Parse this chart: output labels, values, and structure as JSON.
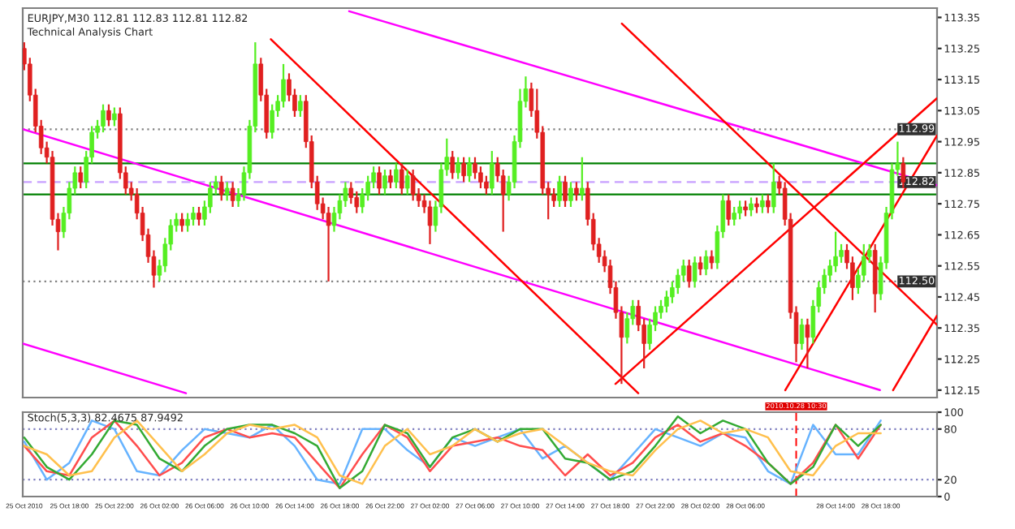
{
  "chart_data": [
    {
      "type": "candlestick",
      "title": "EURJPY,M30 112.81 112.83 112.81 112.82",
      "subtitle": "Technical Analysis Chart",
      "x": [
        "2010-10-25T14:00",
        "2010-10-25T14:30",
        "2010-10-25T15:00",
        "2010-10-25T15:30",
        "2010-10-25T16:00",
        "2010-10-25T16:30",
        "2010-10-25T17:00",
        "2010-10-25T17:30",
        "2010-10-25T18:00",
        "2010-10-25T18:30",
        "2010-10-25T19:00",
        "2010-10-25T19:30",
        "2010-10-25T20:00",
        "2010-10-25T20:30",
        "2010-10-25T21:00",
        "2010-10-25T21:30",
        "2010-10-25T22:00",
        "2010-10-25T22:30",
        "2010-10-25T23:00",
        "2010-10-25T23:30",
        "2010-10-26T00:00",
        "2010-10-26T00:30",
        "2010-10-26T01:00",
        "2010-10-26T01:30",
        "2010-10-26T02:00",
        "2010-10-26T02:30",
        "2010-10-26T03:00",
        "2010-10-26T03:30",
        "2010-10-26T04:00",
        "2010-10-26T04:30",
        "2010-10-26T05:00",
        "2010-10-26T05:30",
        "2010-10-26T06:00",
        "2010-10-26T06:30",
        "2010-10-26T07:00",
        "2010-10-26T07:30",
        "2010-10-26T08:00",
        "2010-10-26T08:30",
        "2010-10-26T09:00",
        "2010-10-26T09:30",
        "2010-10-26T10:00",
        "2010-10-26T10:30",
        "2010-10-26T11:00",
        "2010-10-26T11:30",
        "2010-10-26T12:00",
        "2010-10-26T12:30",
        "2010-10-26T13:00",
        "2010-10-26T13:30",
        "2010-10-26T14:00",
        "2010-10-26T14:30",
        "2010-10-26T15:00",
        "2010-10-26T15:30",
        "2010-10-26T16:00",
        "2010-10-26T16:30",
        "2010-10-26T17:00",
        "2010-10-26T17:30",
        "2010-10-26T18:00",
        "2010-10-26T18:30",
        "2010-10-26T19:00",
        "2010-10-26T19:30",
        "2010-10-26T20:00",
        "2010-10-26T20:30",
        "2010-10-26T21:00",
        "2010-10-26T21:30",
        "2010-10-26T22:00",
        "2010-10-26T22:30",
        "2010-10-26T23:00",
        "2010-10-26T23:30",
        "2010-10-27T00:00",
        "2010-10-27T00:30",
        "2010-10-27T01:00",
        "2010-10-27T01:30",
        "2010-10-27T02:00",
        "2010-10-27T02:30",
        "2010-10-27T03:00",
        "2010-10-27T03:30",
        "2010-10-27T04:00",
        "2010-10-27T04:30",
        "2010-10-27T05:00",
        "2010-10-27T05:30",
        "2010-10-27T06:00",
        "2010-10-27T06:30",
        "2010-10-27T07:00",
        "2010-10-27T07:30",
        "2010-10-27T08:00",
        "2010-10-27T08:30",
        "2010-10-27T09:00",
        "2010-10-27T09:30",
        "2010-10-27T10:00",
        "2010-10-27T10:30",
        "2010-10-27T11:00",
        "2010-10-27T11:30",
        "2010-10-27T12:00",
        "2010-10-27T12:30",
        "2010-10-27T13:00",
        "2010-10-27T13:30",
        "2010-10-27T14:00",
        "2010-10-27T14:30",
        "2010-10-27T15:00",
        "2010-10-27T15:30",
        "2010-10-27T16:00",
        "2010-10-27T16:30",
        "2010-10-27T17:00",
        "2010-10-27T17:30",
        "2010-10-27T18:00",
        "2010-10-27T18:30",
        "2010-10-27T19:00",
        "2010-10-27T19:30",
        "2010-10-27T20:00",
        "2010-10-27T20:30",
        "2010-10-27T21:00",
        "2010-10-27T21:30",
        "2010-10-27T22:00",
        "2010-10-27T22:30",
        "2010-10-27T23:00",
        "2010-10-27T23:30",
        "2010-10-28T00:00",
        "2010-10-28T00:30",
        "2010-10-28T01:00",
        "2010-10-28T01:30",
        "2010-10-28T02:00",
        "2010-10-28T02:30",
        "2010-10-28T03:00",
        "2010-10-28T03:30",
        "2010-10-28T04:00",
        "2010-10-28T04:30",
        "2010-10-28T05:00",
        "2010-10-28T05:30",
        "2010-10-28T06:00",
        "2010-10-28T06:30",
        "2010-10-28T07:00",
        "2010-10-28T07:30",
        "2010-10-28T08:00",
        "2010-10-28T08:30",
        "2010-10-28T09:00",
        "2010-10-28T09:30",
        "2010-10-28T10:00",
        "2010-10-28T10:30",
        "2010-10-28T11:00",
        "2010-10-28T11:30",
        "2010-10-28T12:00",
        "2010-10-28T12:30",
        "2010-10-28T13:00",
        "2010-10-28T13:30",
        "2010-10-28T14:00",
        "2010-10-28T14:30",
        "2010-10-28T15:00",
        "2010-10-28T15:30",
        "2010-10-28T16:00",
        "2010-10-28T16:30",
        "2010-10-28T17:00",
        "2010-10-28T17:30",
        "2010-10-28T18:00",
        "2010-10-28T18:30",
        "2010-10-28T19:00",
        "2010-10-28T19:30",
        "2010-10-28T20:00"
      ],
      "ohlc": [
        [
          113.25,
          113.27,
          113.18,
          113.2
        ],
        [
          113.2,
          113.22,
          113.08,
          113.1
        ],
        [
          113.1,
          113.12,
          112.98,
          113.0
        ],
        [
          113.0,
          113.02,
          112.91,
          112.93
        ],
        [
          112.93,
          112.95,
          112.88,
          112.9
        ],
        [
          112.9,
          112.92,
          112.68,
          112.7
        ],
        [
          112.7,
          112.72,
          112.6,
          112.66
        ],
        [
          112.66,
          112.74,
          112.64,
          112.72
        ],
        [
          112.72,
          112.82,
          112.7,
          112.8
        ],
        [
          112.8,
          112.87,
          112.78,
          112.85
        ],
        [
          112.85,
          112.87,
          112.8,
          112.82
        ],
        [
          112.82,
          112.92,
          112.8,
          112.9
        ],
        [
          112.9,
          113.0,
          112.88,
          112.98
        ],
        [
          112.98,
          113.02,
          112.96,
          113.0
        ],
        [
          113.0,
          113.07,
          112.98,
          113.05
        ],
        [
          113.05,
          113.07,
          113.0,
          113.02
        ],
        [
          113.02,
          113.06,
          113.0,
          113.04
        ],
        [
          113.04,
          113.06,
          112.83,
          112.85
        ],
        [
          112.85,
          112.87,
          112.78,
          112.8
        ],
        [
          112.8,
          112.82,
          112.76,
          112.78
        ],
        [
          112.78,
          112.8,
          112.7,
          112.72
        ],
        [
          112.72,
          112.74,
          112.63,
          112.65
        ],
        [
          112.65,
          112.67,
          112.56,
          112.58
        ],
        [
          112.58,
          112.6,
          112.48,
          112.52
        ],
        [
          112.52,
          112.57,
          112.5,
          112.55
        ],
        [
          112.55,
          112.64,
          112.53,
          112.62
        ],
        [
          112.62,
          112.7,
          112.6,
          112.68
        ],
        [
          112.68,
          112.72,
          112.66,
          112.7
        ],
        [
          112.7,
          112.72,
          112.66,
          112.68
        ],
        [
          112.68,
          112.72,
          112.66,
          112.7
        ],
        [
          112.7,
          112.74,
          112.68,
          112.72
        ],
        [
          112.72,
          112.74,
          112.68,
          112.7
        ],
        [
          112.7,
          112.76,
          112.68,
          112.74
        ],
        [
          112.74,
          112.82,
          112.72,
          112.8
        ],
        [
          112.8,
          112.84,
          112.78,
          112.82
        ],
        [
          112.82,
          112.84,
          112.76,
          112.78
        ],
        [
          112.78,
          112.82,
          112.76,
          112.8
        ],
        [
          112.8,
          112.82,
          112.74,
          112.76
        ],
        [
          112.76,
          112.8,
          112.74,
          112.78
        ],
        [
          112.78,
          112.87,
          112.76,
          112.85
        ],
        [
          112.85,
          113.02,
          112.83,
          113.0
        ],
        [
          113.0,
          113.27,
          112.98,
          113.2
        ],
        [
          113.2,
          113.22,
          113.08,
          113.1
        ],
        [
          113.1,
          113.12,
          112.96,
          112.98
        ],
        [
          112.98,
          113.07,
          112.96,
          113.05
        ],
        [
          113.05,
          113.1,
          113.03,
          113.08
        ],
        [
          113.08,
          113.2,
          113.06,
          113.15
        ],
        [
          113.15,
          113.17,
          113.08,
          113.1
        ],
        [
          113.1,
          113.12,
          113.03,
          113.05
        ],
        [
          113.05,
          113.1,
          113.03,
          113.08
        ],
        [
          113.08,
          113.1,
          112.93,
          112.95
        ],
        [
          112.95,
          112.97,
          112.8,
          112.82
        ],
        [
          112.82,
          112.84,
          112.73,
          112.75
        ],
        [
          112.75,
          112.77,
          112.7,
          112.72
        ],
        [
          112.72,
          112.74,
          112.5,
          112.68
        ],
        [
          112.68,
          112.74,
          112.66,
          112.72
        ],
        [
          112.72,
          112.78,
          112.7,
          112.76
        ],
        [
          112.76,
          112.82,
          112.74,
          112.8
        ],
        [
          112.8,
          112.82,
          112.75,
          112.77
        ],
        [
          112.77,
          112.79,
          112.72,
          112.74
        ],
        [
          112.74,
          112.8,
          112.72,
          112.78
        ],
        [
          112.78,
          112.84,
          112.76,
          112.82
        ],
        [
          112.82,
          112.87,
          112.8,
          112.85
        ],
        [
          112.85,
          112.87,
          112.78,
          112.8
        ],
        [
          112.8,
          112.86,
          112.78,
          112.84
        ],
        [
          112.84,
          112.86,
          112.8,
          112.82
        ],
        [
          112.82,
          112.88,
          112.8,
          112.86
        ],
        [
          112.86,
          112.88,
          112.78,
          112.8
        ],
        [
          112.8,
          112.86,
          112.78,
          112.84
        ],
        [
          112.84,
          112.86,
          112.76,
          112.78
        ],
        [
          112.78,
          112.8,
          112.74,
          112.76
        ],
        [
          112.76,
          112.78,
          112.72,
          112.74
        ],
        [
          112.74,
          112.76,
          112.62,
          112.68
        ],
        [
          112.68,
          112.76,
          112.66,
          112.74
        ],
        [
          112.74,
          112.88,
          112.72,
          112.86
        ],
        [
          112.86,
          112.96,
          112.84,
          112.9
        ],
        [
          112.9,
          112.92,
          112.83,
          112.85
        ],
        [
          112.85,
          112.9,
          112.83,
          112.88
        ],
        [
          112.88,
          112.9,
          112.82,
          112.84
        ],
        [
          112.84,
          112.9,
          112.82,
          112.88
        ],
        [
          112.88,
          112.9,
          112.83,
          112.85
        ],
        [
          112.85,
          112.87,
          112.8,
          112.82
        ],
        [
          112.82,
          112.84,
          112.78,
          112.8
        ],
        [
          112.8,
          112.92,
          112.78,
          112.88
        ],
        [
          112.88,
          112.9,
          112.82,
          112.84
        ],
        [
          112.84,
          112.86,
          112.66,
          112.78
        ],
        [
          112.78,
          112.84,
          112.76,
          112.82
        ],
        [
          112.82,
          112.97,
          112.8,
          112.95
        ],
        [
          112.95,
          113.12,
          112.93,
          113.08
        ],
        [
          113.08,
          113.16,
          113.06,
          113.12
        ],
        [
          113.12,
          113.14,
          113.03,
          113.05
        ],
        [
          113.05,
          113.12,
          112.96,
          112.98
        ],
        [
          112.98,
          113.0,
          112.78,
          112.8
        ],
        [
          112.8,
          112.82,
          112.7,
          112.78
        ],
        [
          112.78,
          112.8,
          112.74,
          112.76
        ],
        [
          112.76,
          112.84,
          112.74,
          112.82
        ],
        [
          112.82,
          112.84,
          112.74,
          112.76
        ],
        [
          112.76,
          112.82,
          112.74,
          112.8
        ],
        [
          112.8,
          112.82,
          112.76,
          112.78
        ],
        [
          112.78,
          112.9,
          112.76,
          112.8
        ],
        [
          112.8,
          112.82,
          112.68,
          112.7
        ],
        [
          112.7,
          112.72,
          112.6,
          112.62
        ],
        [
          112.62,
          112.64,
          112.56,
          112.58
        ],
        [
          112.58,
          112.6,
          112.53,
          112.55
        ],
        [
          112.55,
          112.57,
          112.46,
          112.48
        ],
        [
          112.48,
          112.5,
          112.38,
          112.4
        ],
        [
          112.4,
          112.42,
          112.17,
          112.32
        ],
        [
          112.32,
          112.4,
          112.3,
          112.38
        ],
        [
          112.38,
          112.44,
          112.36,
          112.42
        ],
        [
          112.42,
          112.44,
          112.34,
          112.36
        ],
        [
          112.36,
          112.38,
          112.22,
          112.3
        ],
        [
          112.3,
          112.38,
          112.28,
          112.36
        ],
        [
          112.36,
          112.42,
          112.34,
          112.4
        ],
        [
          112.4,
          112.44,
          112.38,
          112.42
        ],
        [
          112.42,
          112.47,
          112.4,
          112.45
        ],
        [
          112.45,
          112.5,
          112.43,
          112.48
        ],
        [
          112.48,
          112.54,
          112.46,
          112.52
        ],
        [
          112.52,
          112.57,
          112.5,
          112.55
        ],
        [
          112.55,
          112.57,
          112.48,
          112.5
        ],
        [
          112.5,
          112.58,
          112.48,
          112.56
        ],
        [
          112.56,
          112.58,
          112.52,
          112.54
        ],
        [
          112.54,
          112.6,
          112.52,
          112.58
        ],
        [
          112.58,
          112.6,
          112.54,
          112.56
        ],
        [
          112.56,
          112.68,
          112.54,
          112.66
        ],
        [
          112.66,
          112.78,
          112.64,
          112.76
        ],
        [
          112.76,
          112.78,
          112.68,
          112.7
        ],
        [
          112.7,
          112.74,
          112.68,
          112.72
        ],
        [
          112.72,
          112.76,
          112.7,
          112.74
        ],
        [
          112.74,
          112.76,
          112.71,
          112.73
        ],
        [
          112.73,
          112.77,
          112.71,
          112.75
        ],
        [
          112.75,
          112.77,
          112.72,
          112.74
        ],
        [
          112.74,
          112.78,
          112.72,
          112.76
        ],
        [
          112.76,
          112.78,
          112.72,
          112.74
        ],
        [
          112.74,
          112.88,
          112.72,
          112.82
        ],
        [
          112.82,
          112.84,
          112.78,
          112.8
        ],
        [
          112.8,
          112.82,
          112.68,
          112.7
        ],
        [
          112.7,
          112.72,
          112.38,
          112.4
        ],
        [
          112.4,
          112.42,
          112.24,
          112.3
        ],
        [
          112.3,
          112.38,
          112.28,
          112.36
        ],
        [
          112.36,
          112.38,
          112.22,
          112.32
        ],
        [
          112.32,
          112.44,
          112.3,
          112.42
        ],
        [
          112.42,
          112.5,
          112.4,
          112.48
        ],
        [
          112.48,
          112.54,
          112.46,
          112.52
        ],
        [
          112.52,
          112.57,
          112.5,
          112.55
        ],
        [
          112.55,
          112.66,
          112.53,
          112.58
        ],
        [
          112.58,
          112.62,
          112.56,
          112.6
        ],
        [
          112.6,
          112.62,
          112.54,
          112.56
        ],
        [
          112.56,
          112.58,
          112.44,
          112.48
        ],
        [
          112.48,
          112.54,
          112.46,
          112.52
        ],
        [
          112.52,
          112.62,
          112.5,
          112.58
        ],
        [
          112.58,
          112.62,
          112.56,
          112.6
        ],
        [
          112.6,
          112.62,
          112.4,
          112.46
        ],
        [
          112.46,
          112.58,
          112.44,
          112.56
        ],
        [
          112.56,
          112.74,
          112.54,
          112.72
        ],
        [
          112.72,
          112.88,
          112.7,
          112.86
        ],
        [
          112.86,
          112.95,
          112.84,
          112.88
        ],
        [
          112.88,
          112.9,
          112.8,
          112.82
        ]
      ],
      "series": [
        {
          "type": "line",
          "color": "#ff00ff",
          "x": [
            "2010-10-25T13:52",
            "2010-10-28T17:56"
          ],
          "values": [
            112.99,
            112.15
          ]
        },
        {
          "type": "line",
          "color": "#ff00ff",
          "x": [
            "2010-10-26T18:50",
            "2010-10-28T23:00"
          ],
          "values": [
            113.37,
            112.81
          ]
        },
        {
          "type": "line",
          "color": "#ff00ff",
          "x": [
            "2010-10-25T13:52",
            "2010-10-26T04:21"
          ],
          "values": [
            112.3,
            112.14
          ]
        },
        {
          "type": "line",
          "color": "#ff0000",
          "x": [
            "2010-10-26T11:53",
            "2010-10-27T20:29"
          ],
          "values": [
            113.28,
            112.14
          ]
        },
        {
          "type": "line",
          "color": "#ff0000",
          "x": [
            "2010-10-27T19:02",
            "2010-10-28T23:00"
          ],
          "values": [
            113.33,
            112.36
          ]
        },
        {
          "type": "line",
          "color": "#ff0000",
          "x": [
            "2010-10-27T18:28",
            "2010-10-28T23:00"
          ],
          "values": [
            112.17,
            113.09
          ]
        },
        {
          "type": "line",
          "color": "#ff0000",
          "x": [
            "2010-10-28T09:32",
            "2010-10-28T23:00"
          ],
          "values": [
            112.15,
            112.97
          ]
        },
        {
          "type": "line",
          "color": "#ff0000",
          "x": [
            "2010-10-28T19:06",
            "2010-10-28T23:00"
          ],
          "values": [
            112.15,
            112.39
          ]
        }
      ],
      "ref_lines": [
        {
          "axis": "y",
          "value": 112.99,
          "label": "112.99",
          "color": "#808080",
          "line_style": "dotted"
        },
        {
          "axis": "y",
          "value": 112.82,
          "label": "112.82",
          "color": "#c8a0ff",
          "line_style": "dashed"
        },
        {
          "axis": "y",
          "value": 112.5,
          "label": "112.50",
          "color": "#808080",
          "line_style": "dotted"
        },
        {
          "axis": "y",
          "value": 112.88,
          "color": "#008000",
          "line_style": "solid"
        },
        {
          "axis": "y",
          "value": 112.78,
          "color": "#008000",
          "line_style": "solid"
        }
      ],
      "xlim": [
        "2010-10-25T13:52",
        "2010-10-28T23:00"
      ],
      "ylim": [
        112.126,
        113.38
      ],
      "yticks": [
        112.15,
        112.25,
        112.35,
        112.45,
        112.55,
        112.65,
        112.75,
        112.85,
        112.95,
        113.05,
        113.15,
        113.25,
        113.35
      ],
      "tick_labels": "y"
    },
    {
      "type": "line",
      "title": "Stoch(5,3,3) 82.4675 87.9492",
      "x": [
        "2010-10-25T14:00",
        "2010-10-25T16:00",
        "2010-10-25T18:00",
        "2010-10-25T20:00",
        "2010-10-25T22:00",
        "2010-10-26T00:00",
        "2010-10-26T02:00",
        "2010-10-26T04:00",
        "2010-10-26T06:00",
        "2010-10-26T08:00",
        "2010-10-26T10:00",
        "2010-10-26T12:00",
        "2010-10-26T14:00",
        "2010-10-26T16:00",
        "2010-10-26T18:00",
        "2010-10-26T20:00",
        "2010-10-26T22:00",
        "2010-10-27T00:00",
        "2010-10-27T02:00",
        "2010-10-27T04:00",
        "2010-10-27T06:00",
        "2010-10-27T08:00",
        "2010-10-27T10:00",
        "2010-10-27T12:00",
        "2010-10-27T14:00",
        "2010-10-27T16:00",
        "2010-10-27T18:00",
        "2010-10-27T20:00",
        "2010-10-27T22:00",
        "2010-10-28T00:00",
        "2010-10-28T02:00",
        "2010-10-28T04:00",
        "2010-10-28T06:00",
        "2010-10-28T08:00",
        "2010-10-28T10:00",
        "2010-10-28T12:00",
        "2010-10-28T14:00",
        "2010-10-28T16:00",
        "2010-10-28T18:00"
      ],
      "series": [
        {
          "color": "#66b3ff",
          "values": [
            65,
            20,
            40,
            90,
            80,
            30,
            25,
            55,
            80,
            75,
            70,
            85,
            60,
            20,
            15,
            80,
            80,
            55,
            35,
            70,
            60,
            70,
            80,
            45,
            60,
            40,
            20,
            50,
            80,
            70,
            60,
            75,
            70,
            30,
            15,
            85,
            50,
            50,
            90
          ]
        },
        {
          "color": "#ff4d4d",
          "values": [
            60,
            30,
            25,
            70,
            90,
            60,
            25,
            40,
            70,
            80,
            70,
            75,
            70,
            40,
            10,
            50,
            85,
            70,
            30,
            60,
            65,
            70,
            60,
            55,
            25,
            50,
            25,
            40,
            70,
            85,
            65,
            75,
            60,
            40,
            15,
            40,
            85,
            45,
            85
          ]
        },
        {
          "color": "#33aa33",
          "values": [
            70,
            35,
            20,
            50,
            90,
            85,
            45,
            30,
            60,
            80,
            85,
            85,
            75,
            60,
            10,
            30,
            85,
            75,
            35,
            70,
            80,
            65,
            80,
            80,
            45,
            40,
            20,
            30,
            60,
            95,
            75,
            90,
            80,
            40,
            15,
            35,
            85,
            60,
            85
          ]
        },
        {
          "color": "#ffc04d",
          "values": [
            60,
            50,
            25,
            30,
            70,
            90,
            60,
            30,
            50,
            75,
            85,
            80,
            85,
            70,
            25,
            15,
            60,
            80,
            50,
            60,
            80,
            65,
            75,
            80,
            60,
            40,
            30,
            25,
            55,
            80,
            90,
            75,
            80,
            70,
            30,
            25,
            60,
            75,
            75
          ]
        }
      ],
      "ref_lines": [
        {
          "axis": "y",
          "value": 80,
          "color": "#8080c0",
          "line_style": "dotted"
        },
        {
          "axis": "y",
          "value": 20,
          "color": "#8080c0",
          "line_style": "dotted"
        },
        {
          "axis": "x",
          "value": "2010-10-28T10:30",
          "label": "2010.10.28 10:30",
          "color": "#ff0000",
          "line_style": "dashed"
        }
      ],
      "xlim": [
        "2010-10-25T13:52",
        "2010-10-28T23:00"
      ],
      "ylim": [
        0,
        100
      ],
      "yticks": [
        0,
        20,
        80,
        100
      ],
      "xticks": [
        {
          "value": "2010-10-25T14:00",
          "label": "25 Oct 2010"
        },
        {
          "value": "2010-10-25T18:00",
          "label": "25 Oct 18:00"
        },
        {
          "value": "2010-10-25T22:00",
          "label": "25 Oct 22:00"
        },
        {
          "value": "2010-10-26T02:00",
          "label": "26 Oct 02:00"
        },
        {
          "value": "2010-10-26T06:00",
          "label": "26 Oct 06:00"
        },
        {
          "value": "2010-10-26T10:00",
          "label": "26 Oct 10:00"
        },
        {
          "value": "2010-10-26T14:00",
          "label": "26 Oct 14:00"
        },
        {
          "value": "2010-10-26T18:00",
          "label": "26 Oct 18:00"
        },
        {
          "value": "2010-10-26T22:00",
          "label": "26 Oct 22:00"
        },
        {
          "value": "2010-10-27T02:00",
          "label": "27 Oct 02:00"
        },
        {
          "value": "2010-10-27T06:00",
          "label": "27 Oct 06:00"
        },
        {
          "value": "2010-10-27T10:00",
          "label": "27 Oct 10:00"
        },
        {
          "value": "2010-10-27T14:00",
          "label": "27 Oct 14:00"
        },
        {
          "value": "2010-10-27T18:00",
          "label": "27 Oct 18:00"
        },
        {
          "value": "2010-10-27T22:00",
          "label": "27 Oct 22:00"
        },
        {
          "value": "2010-10-28T02:00",
          "label": "28 Oct 02:00"
        },
        {
          "value": "2010-10-28T06:00",
          "label": "28 Oct 06:00"
        },
        {
          "value": "2010-10-28T14:00",
          "label": "28 Oct 14:00"
        },
        {
          "value": "2010-10-28T18:00",
          "label": "28 Oct 18:00"
        }
      ]
    }
  ]
}
